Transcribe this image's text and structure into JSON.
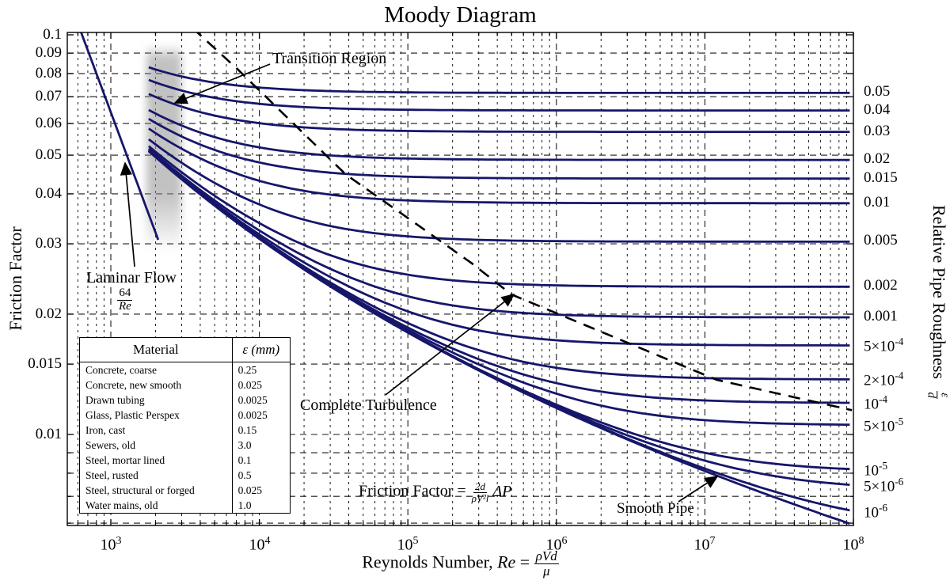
{
  "title": "Moody Diagram",
  "chart_data": {
    "type": "line",
    "title": "Moody Diagram",
    "xlabel": {
      "prefix": "Reynolds Number, ",
      "re": "Re",
      "eq": " = ",
      "num": "ρVd",
      "den": "μ"
    },
    "ylabel_left": "Friction Factor",
    "ylabel_right": "Relative Pipe Roughness",
    "ylabel_right_frac": {
      "num": "ε",
      "den": "d"
    },
    "x_axis": {
      "scale": "log",
      "range_logRe": [
        2.707,
        8
      ],
      "major_tick_exponents": [
        3,
        4,
        5,
        6,
        7,
        8
      ]
    },
    "y_axis": {
      "scale": "log",
      "range_f": [
        0.0059,
        0.1
      ],
      "ticks": [
        {
          "f": 0.1,
          "label": "0.1"
        },
        {
          "f": 0.09,
          "label": "0.09"
        },
        {
          "f": 0.08,
          "label": "0.08"
        },
        {
          "f": 0.07,
          "label": "0.07"
        },
        {
          "f": 0.06,
          "label": "0.06"
        },
        {
          "f": 0.05,
          "label": "0.05"
        },
        {
          "f": 0.04,
          "label": "0.04"
        },
        {
          "f": 0.03,
          "label": "0.03"
        },
        {
          "f": 0.02,
          "label": "0.02"
        },
        {
          "f": 0.015,
          "label": "0.015"
        },
        {
          "f": 0.01,
          "label": "0.01"
        },
        {
          "f": 0.009,
          "label": ""
        },
        {
          "f": 0.008,
          "label": ""
        },
        {
          "f": 0.007,
          "label": ""
        },
        {
          "f": 0.006,
          "label": ""
        }
      ],
      "grid": true
    },
    "turbulent_re_range": [
      1800,
      100000000
    ],
    "roughness_curves": [
      {
        "ed": 0.05,
        "label": "0.05"
      },
      {
        "ed": 0.04,
        "label": "0.04"
      },
      {
        "ed": 0.03,
        "label": "0.03"
      },
      {
        "ed": 0.02,
        "label": "0.02"
      },
      {
        "ed": 0.015,
        "label": "0.015"
      },
      {
        "ed": 0.01,
        "label": "0.01"
      },
      {
        "ed": 0.005,
        "label": "0.005"
      },
      {
        "ed": 0.002,
        "label": "0.002"
      },
      {
        "ed": 0.001,
        "label": "0.001"
      },
      {
        "ed": 0.0005,
        "label": "5×10^-4"
      },
      {
        "ed": 0.0002,
        "label": "2×10^-4"
      },
      {
        "ed": 0.0001,
        "label": "10^-4"
      },
      {
        "ed": 5e-05,
        "label": "5×10^-5"
      },
      {
        "ed": 1e-05,
        "label": "10^-5"
      },
      {
        "ed": 5e-06,
        "label": "5×10^-6"
      },
      {
        "ed": 1e-06,
        "label": "10^-6"
      }
    ],
    "smooth_pipe": {
      "ed": 0,
      "label": "Smooth Pipe"
    },
    "laminar": {
      "label": "Laminar Flow",
      "formula_num": "64",
      "formula_den": "Re",
      "re_range": [
        500,
        2150
      ]
    },
    "transition_region": {
      "label": "Transition Region"
    },
    "complete_turbulence_boundary": {
      "label": "Complete Turbulence",
      "style": "dashed",
      "points_logRe_f": [
        [
          3.55,
          0.104
        ],
        [
          3.851,
          0.0822
        ],
        [
          4.207,
          0.0611
        ],
        [
          4.58,
          0.0448
        ],
        [
          5.0,
          0.0348
        ],
        [
          5.431,
          0.0268
        ],
        [
          5.697,
          0.0224
        ],
        [
          6.4,
          0.01745
        ],
        [
          7.08,
          0.0137
        ],
        [
          7.99,
          0.0115
        ]
      ]
    },
    "friction_formula": {
      "prefix": "Friction Factor = ",
      "num": "2d",
      "den": "ρV²l",
      "suffix": "ΔP"
    },
    "colors": {
      "curve": "#16166b",
      "grid": "#1a1a1a",
      "dashed": "#000000",
      "band": "#8f8f8f"
    }
  },
  "table": {
    "headers": [
      "Material",
      "ε (mm)"
    ],
    "rows": [
      [
        "Concrete, coarse",
        "0.25"
      ],
      [
        "Concrete, new smooth",
        "0.025"
      ],
      [
        "Drawn tubing",
        "0.0025"
      ],
      [
        "Glass, Plastic Perspex",
        "0.0025"
      ],
      [
        "Iron, cast",
        "0.15"
      ],
      [
        "Sewers, old",
        "3.0"
      ],
      [
        "Steel, mortar lined",
        "0.1"
      ],
      [
        "Steel, rusted",
        "0.5"
      ],
      [
        "Steel, structural or forged",
        "0.025"
      ],
      [
        "Water mains, old",
        "1.0"
      ]
    ]
  }
}
